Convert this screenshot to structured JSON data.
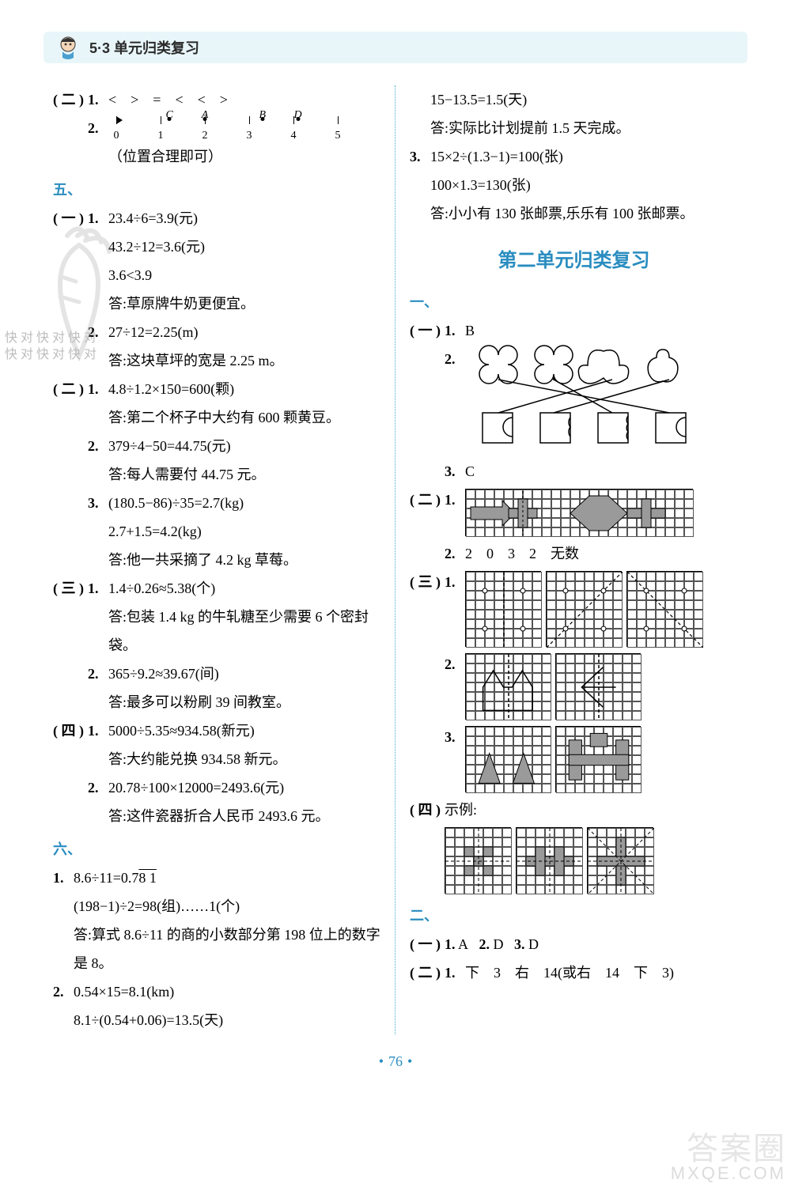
{
  "page": {
    "header_title": "5·3 单元归类复习",
    "page_number": "76",
    "colors": {
      "accent": "#2a8dc0",
      "header_bg": "#e8f6fa",
      "divider": "#4ba7d1",
      "watermark": "#bdbdbd",
      "grid_fill": "#9a9a9a"
    },
    "watermark_line1": "快对快对快对",
    "watermark_line2": "快对快对快对",
    "footer_wm_1": "答案圈",
    "footer_wm_2": "MXQE.COM"
  },
  "left": {
    "sec2": {
      "label": "( 二 )",
      "q1_num": "1.",
      "q1": "<　>　=　<　<　>",
      "q2_num": "2.",
      "number_line": {
        "ticks": [
          0,
          1,
          2,
          3,
          4,
          5
        ],
        "points": [
          {
            "pos": 1.2,
            "label": "C"
          },
          {
            "pos": 2.0,
            "label": "A"
          },
          {
            "pos": 3.3,
            "label": "B"
          },
          {
            "pos": 4.1,
            "label": "D"
          }
        ]
      },
      "q2_note": "（位置合理即可）"
    },
    "five": {
      "head": "五、",
      "g1": {
        "label": "( 一 )",
        "q1_num": "1.",
        "q1_l1": "23.4÷6=3.9(元)",
        "q1_l2": "43.2÷12=3.6(元)",
        "q1_l3": "3.6<3.9",
        "q1_ans": "答:草原牌牛奶更便宜。",
        "q2_num": "2.",
        "q2_l1": "27÷12=2.25(m)",
        "q2_ans": "答:这块草坪的宽是 2.25 m。"
      },
      "g2": {
        "label": "( 二 )",
        "q1_num": "1.",
        "q1_l1": "4.8÷1.2×150=600(颗)",
        "q1_ans": "答:第二个杯子中大约有 600 颗黄豆。",
        "q2_num": "2.",
        "q2_l1": "379÷4−50=44.75(元)",
        "q2_ans": "答:每人需要付 44.75 元。",
        "q3_num": "3.",
        "q3_l1": "(180.5−86)÷35=2.7(kg)",
        "q3_l2": "2.7+1.5=4.2(kg)",
        "q3_ans": "答:他一共采摘了 4.2 kg 草莓。"
      },
      "g3": {
        "label": "( 三 )",
        "q1_num": "1.",
        "q1_l1": "1.4÷0.26≈5.38(个)",
        "q1_ans": "答:包装 1.4 kg 的牛轧糖至少需要 6 个密封袋。",
        "q2_num": "2.",
        "q2_l1": "365÷9.2≈39.67(间)",
        "q2_ans": "答:最多可以粉刷 39 间教室。"
      },
      "g4": {
        "label": "( 四 )",
        "q1_num": "1.",
        "q1_l1": "5000÷5.35≈934.58(新元)",
        "q1_ans": "答:大约能兑换 934.58 新元。",
        "q2_num": "2.",
        "q2_l1": "20.78÷100×12000=2493.6(元)",
        "q2_ans": "答:这件瓷器折合人民币 2493.6 元。"
      }
    },
    "six": {
      "head": "六、",
      "q1_num": "1.",
      "q1_l1_pre": "8.6÷11=0.7",
      "q1_l1_rec": "8 1",
      "q1_l2": "(198−1)÷2=98(组)……1(个)",
      "q1_ans": "答:算式 8.6÷11 的商的小数部分第 198 位上的数字是 8。",
      "q2_num": "2.",
      "q2_l1": "0.54×15=8.1(km)",
      "q2_l2": "8.1÷(0.54+0.06)=13.5(天)"
    }
  },
  "right": {
    "top": {
      "l1": "15−13.5=1.5(天)",
      "l1_ans": "答:实际比计划提前 1.5 天完成。",
      "q3_num": "3.",
      "q3_l1": "15×2÷(1.3−1)=100(张)",
      "q3_l2": "100×1.3=130(张)",
      "q3_ans": "答:小小有 130 张邮票,乐乐有 100 张邮票。"
    },
    "unit2_title": "第二单元归类复习",
    "one": {
      "head": "一、",
      "g1": {
        "label": "( 一 )",
        "q1_num": "1.",
        "q1": "B",
        "q2_num": "2.",
        "q3_num": "3.",
        "q3": "C"
      },
      "g2": {
        "label": "( 二 )",
        "q1_num": "1.",
        "q2_num": "2.",
        "q2": "2　0　3　2　无数"
      },
      "g3": {
        "label": "( 三 )",
        "q1_num": "1.",
        "q2_num": "2.",
        "q3_num": "3."
      },
      "g4": {
        "label": "( 四 )",
        "label_text": "示例:"
      }
    },
    "two": {
      "head": "二、",
      "g1": {
        "label": "( 一 )",
        "q1_num": "1.",
        "q1": "A",
        "q2_num": "2.",
        "q2": "D",
        "q3_num": "3.",
        "q3": "D"
      },
      "g2": {
        "label": "( 二 )",
        "q1_num": "1.",
        "q1": "下　3　右　14(或右　14　下　3)"
      }
    },
    "grids": {
      "cell_size": 12,
      "border": "#555555",
      "fill": "#9a9a9a",
      "g2_1": {
        "cols": 24,
        "rows": 5
      },
      "g3_1": [
        {
          "cols": 8,
          "rows": 8
        },
        {
          "cols": 8,
          "rows": 8
        },
        {
          "cols": 8,
          "rows": 8
        }
      ],
      "g3_2": [
        {
          "cols": 9,
          "rows": 7
        },
        {
          "cols": 9,
          "rows": 7
        }
      ],
      "g3_3": [
        {
          "cols": 9,
          "rows": 7
        },
        {
          "cols": 9,
          "rows": 7
        }
      ],
      "g4": [
        {
          "cols": 7,
          "rows": 7
        },
        {
          "cols": 7,
          "rows": 7
        },
        {
          "cols": 7,
          "rows": 7
        }
      ]
    }
  }
}
